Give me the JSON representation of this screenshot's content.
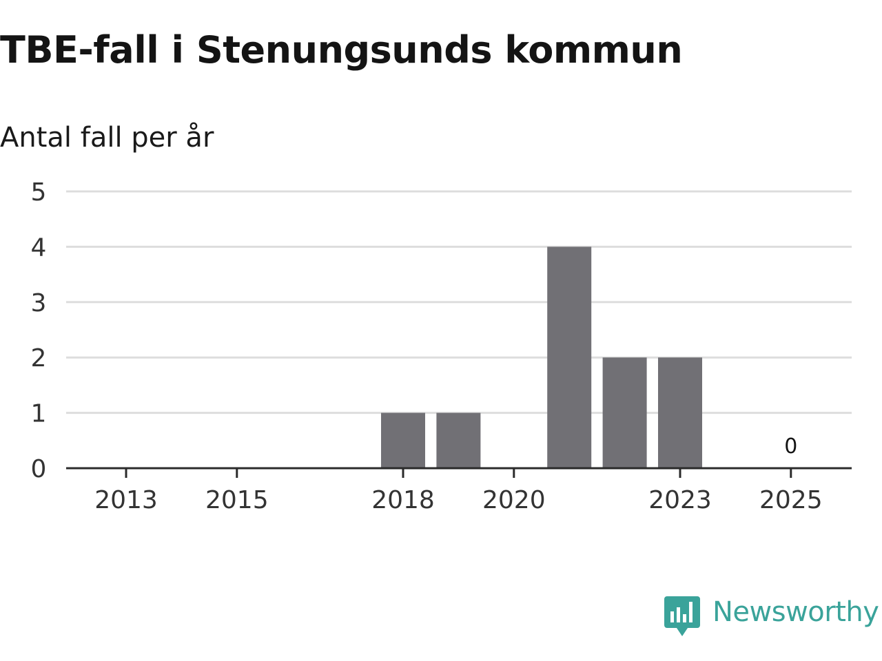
{
  "header": {
    "title": "TBE-fall i Stenungsunds kommun",
    "subtitle": "Antal fall per år"
  },
  "chart_data": {
    "type": "bar",
    "title": "TBE-fall i Stenungsunds kommun",
    "subtitle": "Antal fall per år",
    "xlabel": "",
    "ylabel": "",
    "categories": [
      "2013",
      "2014",
      "2015",
      "2016",
      "2017",
      "2018",
      "2019",
      "2020",
      "2021",
      "2022",
      "2023",
      "2024",
      "2025"
    ],
    "values": [
      0,
      0,
      0,
      0,
      0,
      1,
      1,
      0,
      4,
      2,
      2,
      0,
      0
    ],
    "x_tick_labels": [
      "2013",
      "2015",
      "2018",
      "2020",
      "2023",
      "2025"
    ],
    "y_ticks": [
      0,
      1,
      2,
      3,
      4,
      5
    ],
    "ylim": [
      0,
      5
    ],
    "grid": true,
    "legend": "none",
    "annotations": [
      {
        "category": "2025",
        "text": "0"
      }
    ],
    "colors": {
      "bar": "#717075",
      "grid": "#dddddd",
      "axis": "#2b2b2b",
      "tick_text": "#333333",
      "annotation_text": "#141414"
    }
  },
  "brand": {
    "name": "Newsworthy",
    "logo_icon": "newsworthy-logo-icon",
    "color": "#3aa39a"
  }
}
